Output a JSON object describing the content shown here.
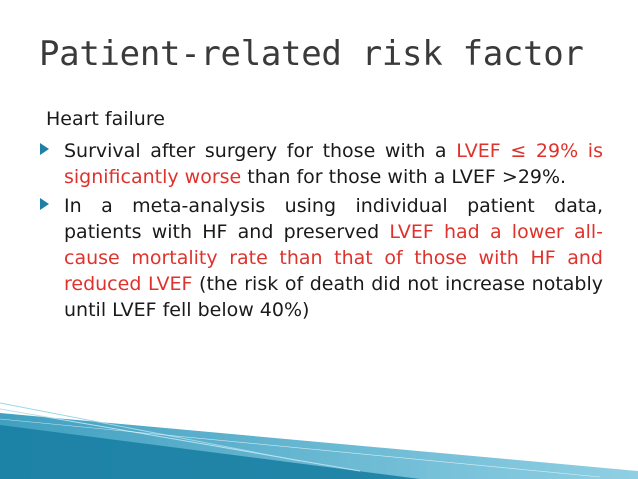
{
  "slide": {
    "title": "Patient-related risk factor",
    "heading": "Heart failure",
    "bullet1": {
      "part1": "Survival after surgery for those with a ",
      "part2_red": "LVEF ≤ 29% is significantly worse",
      "part3": " than for those with a LVEF >29%."
    },
    "bullet2": {
      "part1": "In a meta-analysis using individual patient data, patients with HF and preserved ",
      "part2_red": "LVEF had a lower all-cause mortality rate than that of those with HF and reduced LVEF",
      "part3": " (the risk of death did not increase notably until LVEF fell below 40%)"
    }
  },
  "colors": {
    "accent_red": "#e0322c",
    "bullet_teal": "#1f7fa6",
    "decor_teal": "#1f8fb5"
  },
  "icons": {
    "bullet": "triangle-bullet-icon"
  }
}
